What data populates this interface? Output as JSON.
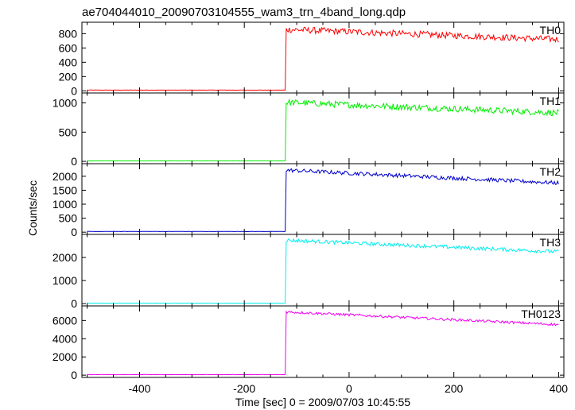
{
  "chart_data": {
    "type": "line",
    "title": "ae704044010_20090703104555_wam3_trn_4band_long.qdp",
    "xlabel": "Time [sec] 0 = 2009/07/03 10:45:55",
    "ylabel": "Counts/sec",
    "xlim": [
      -510,
      410
    ],
    "xticks": [
      -400,
      -200,
      0,
      200,
      400
    ],
    "grid": false,
    "panels": [
      {
        "name": "TH0",
        "color": "#ff0000",
        "ylim": [
          -30,
          960
        ],
        "yticks": [
          0,
          200,
          400,
          600,
          800
        ],
        "baseline": 10,
        "onset": -122,
        "peak": 860,
        "end": 720,
        "noise": 45
      },
      {
        "name": "TH1",
        "color": "#00ee00",
        "ylim": [
          -40,
          1170
        ],
        "yticks": [
          0,
          500,
          1000
        ],
        "baseline": 8,
        "onset": -122,
        "peak": 1010,
        "end": 830,
        "noise": 55
      },
      {
        "name": "TH2",
        "color": "#0000cc",
        "ylim": [
          -80,
          2450
        ],
        "yticks": [
          0,
          500,
          1000,
          1500,
          2000
        ],
        "baseline": 25,
        "onset": -122,
        "peak": 2220,
        "end": 1760,
        "noise": 70
      },
      {
        "name": "TH3",
        "color": "#00eeee",
        "ylim": [
          -100,
          3000
        ],
        "yticks": [
          0,
          1000,
          2000
        ],
        "baseline": 20,
        "onset": -122,
        "peak": 2750,
        "end": 2250,
        "noise": 80
      },
      {
        "name": "TH0123",
        "color": "#ee00ee",
        "ylim": [
          -250,
          7600
        ],
        "yticks": [
          0,
          2000,
          4000,
          6000
        ],
        "baseline": 60,
        "onset": -122,
        "peak": 6950,
        "end": 5550,
        "noise": 140
      }
    ]
  }
}
